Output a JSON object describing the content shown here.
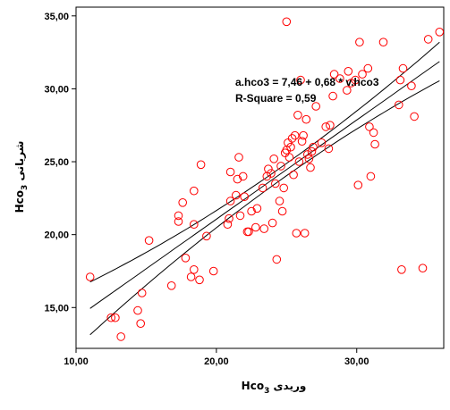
{
  "chart_data": {
    "type": "scatter",
    "xlabel": "وریدی Hco",
    "xlabel_sub": "3",
    "ylabel": "شریانی Hco",
    "ylabel_sub": "3",
    "xlim": [
      10,
      36.2
    ],
    "ylim": [
      12.2,
      35.6
    ],
    "xticks": [
      "10,00",
      "20,00",
      "30,00"
    ],
    "xtick_values": [
      10,
      20,
      30
    ],
    "yticks": [
      "15,00",
      "20,00",
      "25,00",
      "30,00",
      "35,00"
    ],
    "ytick_values": [
      15,
      20,
      25,
      30,
      35
    ],
    "annotation": [
      "a.hco3 = 7,46 + 0,68 * v.hco3",
      "R-Square = 0,59"
    ],
    "grid": false,
    "point_color": "#ff0000",
    "line_color": "#000000",
    "regression": {
      "intercept": 7.46,
      "slope": 0.68
    },
    "points": [
      [
        11.0,
        17.1
      ],
      [
        12.5,
        14.3
      ],
      [
        12.8,
        14.3
      ],
      [
        13.2,
        13.0
      ],
      [
        14.4,
        14.8
      ],
      [
        14.6,
        13.9
      ],
      [
        14.7,
        16.0
      ],
      [
        15.2,
        19.6
      ],
      [
        16.8,
        16.5
      ],
      [
        17.3,
        21.3
      ],
      [
        17.3,
        20.9
      ],
      [
        17.6,
        22.2
      ],
      [
        17.8,
        18.4
      ],
      [
        18.2,
        17.1
      ],
      [
        18.4,
        17.6
      ],
      [
        18.4,
        20.7
      ],
      [
        18.4,
        23.0
      ],
      [
        18.8,
        16.9
      ],
      [
        18.9,
        24.8
      ],
      [
        19.3,
        19.9
      ],
      [
        19.8,
        17.5
      ],
      [
        20.8,
        20.7
      ],
      [
        20.9,
        21.1
      ],
      [
        21.0,
        22.3
      ],
      [
        21.0,
        24.3
      ],
      [
        21.4,
        22.7
      ],
      [
        21.5,
        23.8
      ],
      [
        21.6,
        25.3
      ],
      [
        21.7,
        21.3
      ],
      [
        21.9,
        24.0
      ],
      [
        22.0,
        22.6
      ],
      [
        22.2,
        20.2
      ],
      [
        22.3,
        20.2
      ],
      [
        22.5,
        21.6
      ],
      [
        22.8,
        20.5
      ],
      [
        22.9,
        21.8
      ],
      [
        23.3,
        23.2
      ],
      [
        23.4,
        20.4
      ],
      [
        23.6,
        24.0
      ],
      [
        23.7,
        24.5
      ],
      [
        23.9,
        24.2
      ],
      [
        24.0,
        20.8
      ],
      [
        24.1,
        25.2
      ],
      [
        24.2,
        23.5
      ],
      [
        24.5,
        22.3
      ],
      [
        24.6,
        24.7
      ],
      [
        24.7,
        21.6
      ],
      [
        24.8,
        23.2
      ],
      [
        24.9,
        25.6
      ],
      [
        25.0,
        25.8
      ],
      [
        25.1,
        26.3
      ],
      [
        25.2,
        25.3
      ],
      [
        25.3,
        26.0
      ],
      [
        25.4,
        26.6
      ],
      [
        25.5,
        24.1
      ],
      [
        25.6,
        26.8
      ],
      [
        25.7,
        20.1
      ],
      [
        25.8,
        28.2
      ],
      [
        25.9,
        25.0
      ],
      [
        26.0,
        30.6
      ],
      [
        26.1,
        26.4
      ],
      [
        26.2,
        26.8
      ],
      [
        26.3,
        20.1
      ],
      [
        26.4,
        27.9
      ],
      [
        26.5,
        25.5
      ],
      [
        26.6,
        25.2
      ],
      [
        26.7,
        24.6
      ],
      [
        26.8,
        25.7
      ],
      [
        26.9,
        26.0
      ],
      [
        27.1,
        28.8
      ],
      [
        27.5,
        26.3
      ],
      [
        27.8,
        27.4
      ],
      [
        28.0,
        25.9
      ],
      [
        28.1,
        27.5
      ],
      [
        28.3,
        29.5
      ],
      [
        28.4,
        31.0
      ],
      [
        28.8,
        30.7
      ],
      [
        29.3,
        29.9
      ],
      [
        29.4,
        31.2
      ],
      [
        29.6,
        30.4
      ],
      [
        29.9,
        30.6
      ],
      [
        30.1,
        23.4
      ],
      [
        30.2,
        33.2
      ],
      [
        30.4,
        31.0
      ],
      [
        30.8,
        31.4
      ],
      [
        30.9,
        27.4
      ],
      [
        31.0,
        24.0
      ],
      [
        31.2,
        27.0
      ],
      [
        31.3,
        26.2
      ],
      [
        31.9,
        33.2
      ],
      [
        33.0,
        28.9
      ],
      [
        33.1,
        30.6
      ],
      [
        33.2,
        17.6
      ],
      [
        33.3,
        31.4
      ],
      [
        33.9,
        30.2
      ],
      [
        34.1,
        28.1
      ],
      [
        34.7,
        17.7
      ],
      [
        35.1,
        33.4
      ],
      [
        35.9,
        33.9
      ],
      [
        25.0,
        34.6
      ],
      [
        24.3,
        18.3
      ]
    ]
  }
}
